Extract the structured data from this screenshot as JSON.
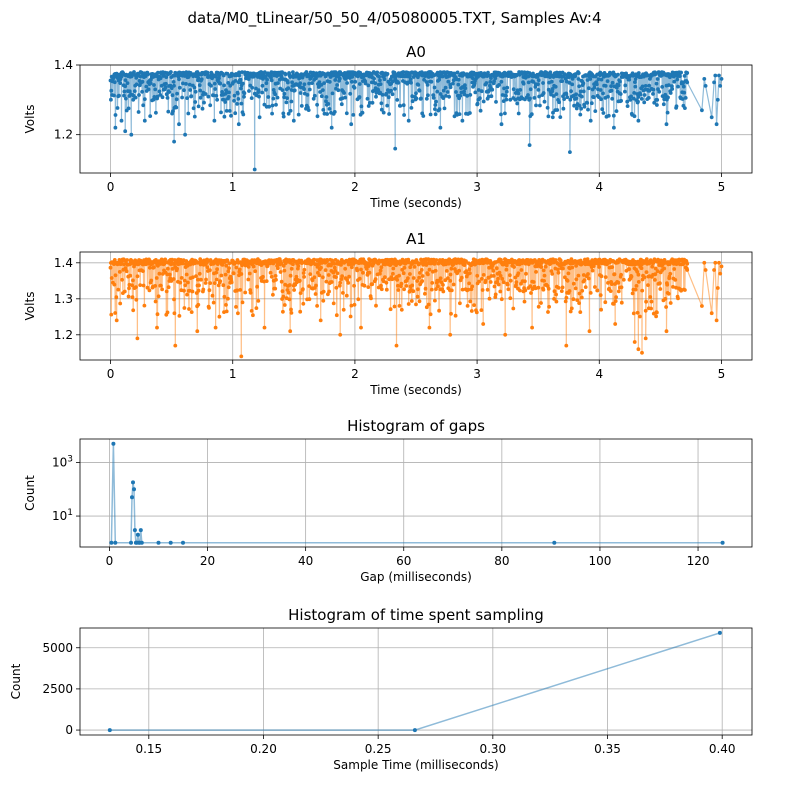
{
  "suptitle": "data/M0_tLinear/50_50_4/05080005.TXT, Samples Av:4",
  "colors": {
    "a0": "#1f77b4",
    "a1": "#ff7f0e",
    "grid": "#b0b0b0"
  },
  "chart_data": [
    {
      "type": "line",
      "title": "A0",
      "xlabel": "Time (seconds)",
      "ylabel": "Volts",
      "xlim": [
        -0.25,
        5.25
      ],
      "ylim": [
        1.09,
        1.4
      ],
      "xticks": [
        0,
        1,
        2,
        3,
        4,
        5
      ],
      "xtick_labels": [
        "0",
        "1",
        "2",
        "3",
        "4",
        "5"
      ],
      "yticks": [
        1.2,
        1.4
      ],
      "ytick_labels": [
        "1.2",
        "1.4"
      ],
      "grid": true,
      "series": [
        {
          "color": "#1f77b4",
          "band": {
            "x_start": 0.0,
            "x_end": 4.72,
            "upper": 1.38,
            "typical_low": 1.3,
            "occasional_low": 1.25
          },
          "dips": [
            [
              0.04,
              1.22
            ],
            [
              0.09,
              1.24
            ],
            [
              0.12,
              1.21
            ],
            [
              0.17,
              1.2
            ],
            [
              0.28,
              1.24
            ],
            [
              0.52,
              1.18
            ],
            [
              0.56,
              1.23
            ],
            [
              0.61,
              1.2
            ],
            [
              0.85,
              1.24
            ],
            [
              1.05,
              1.23
            ],
            [
              1.18,
              1.1
            ],
            [
              1.22,
              1.25
            ],
            [
              1.5,
              1.24
            ],
            [
              1.81,
              1.22
            ],
            [
              1.97,
              1.23
            ],
            [
              2.33,
              1.16
            ],
            [
              2.44,
              1.24
            ],
            [
              2.7,
              1.22
            ],
            [
              2.88,
              1.24
            ],
            [
              3.2,
              1.23
            ],
            [
              3.43,
              1.17
            ],
            [
              3.62,
              1.25
            ],
            [
              3.76,
              1.15
            ],
            [
              3.93,
              1.24
            ],
            [
              4.12,
              1.22
            ],
            [
              4.32,
              1.24
            ],
            [
              4.55,
              1.23
            ]
          ],
          "tail": [
            [
              4.72,
              1.35
            ],
            [
              4.84,
              1.27
            ],
            [
              4.86,
              1.36
            ],
            [
              4.87,
              1.34
            ],
            [
              4.92,
              1.25
            ],
            [
              4.94,
              1.35
            ],
            [
              4.95,
              1.37
            ],
            [
              4.96,
              1.23
            ],
            [
              4.97,
              1.3
            ],
            [
              4.98,
              1.37
            ],
            [
              4.99,
              1.34
            ],
            [
              5.0,
              1.36
            ]
          ]
        }
      ]
    },
    {
      "type": "line",
      "title": "A1",
      "xlabel": "Time (seconds)",
      "ylabel": "Volts",
      "xlim": [
        -0.25,
        5.25
      ],
      "ylim": [
        1.13,
        1.43
      ],
      "xticks": [
        0,
        1,
        2,
        3,
        4,
        5
      ],
      "xtick_labels": [
        "0",
        "1",
        "2",
        "3",
        "4",
        "5"
      ],
      "yticks": [
        1.2,
        1.3,
        1.4
      ],
      "ytick_labels": [
        "1.2",
        "1.3",
        "1.4"
      ],
      "grid": true,
      "series": [
        {
          "color": "#ff7f0e",
          "band": {
            "x_start": 0.0,
            "x_end": 4.72,
            "upper": 1.41,
            "typical_low": 1.32,
            "occasional_low": 1.25
          },
          "dips": [
            [
              0.05,
              1.24
            ],
            [
              0.22,
              1.19
            ],
            [
              0.38,
              1.22
            ],
            [
              0.53,
              1.17
            ],
            [
              0.71,
              1.21
            ],
            [
              0.86,
              1.22
            ],
            [
              1.07,
              1.14
            ],
            [
              1.26,
              1.22
            ],
            [
              1.47,
              1.21
            ],
            [
              1.72,
              1.24
            ],
            [
              1.88,
              1.2
            ],
            [
              2.05,
              1.22
            ],
            [
              2.34,
              1.17
            ],
            [
              2.61,
              1.22
            ],
            [
              2.78,
              1.2
            ],
            [
              3.05,
              1.23
            ],
            [
              3.23,
              1.2
            ],
            [
              3.45,
              1.22
            ],
            [
              3.73,
              1.17
            ],
            [
              3.92,
              1.21
            ],
            [
              4.13,
              1.23
            ],
            [
              4.29,
              1.18
            ],
            [
              4.32,
              1.16
            ],
            [
              4.35,
              1.15
            ],
            [
              4.38,
              1.19
            ],
            [
              4.55,
              1.21
            ]
          ],
          "tail": [
            [
              4.72,
              1.38
            ],
            [
              4.84,
              1.28
            ],
            [
              4.86,
              1.4
            ],
            [
              4.87,
              1.38
            ],
            [
              4.92,
              1.26
            ],
            [
              4.94,
              1.38
            ],
            [
              4.95,
              1.4
            ],
            [
              4.96,
              1.24
            ],
            [
              4.97,
              1.33
            ],
            [
              4.98,
              1.4
            ],
            [
              4.99,
              1.37
            ],
            [
              5.0,
              1.39
            ]
          ]
        }
      ]
    },
    {
      "type": "line",
      "title": "Histogram of gaps",
      "xlabel": "Gap (milliseconds)",
      "ylabel": "Count",
      "log_y": true,
      "xlim": [
        -6,
        131
      ],
      "ylim": [
        0.7,
        7500
      ],
      "xticks": [
        0,
        20,
        40,
        60,
        80,
        100,
        120
      ],
      "xtick_labels": [
        "0",
        "20",
        "40",
        "60",
        "80",
        "100",
        "120"
      ],
      "yticks": [
        10,
        1000
      ],
      "ytick_labels": [
        "10^1",
        "10^3"
      ],
      "grid": true,
      "series": [
        {
          "color": "#1f77b4",
          "points": [
            [
              0.4,
              1
            ],
            [
              0.8,
              5000
            ],
            [
              1.2,
              1
            ],
            [
              4.4,
              1
            ],
            [
              4.6,
              50
            ],
            [
              4.8,
              180
            ],
            [
              5.0,
              100
            ],
            [
              5.2,
              3
            ],
            [
              5.4,
              1
            ],
            [
              5.6,
              1
            ],
            [
              5.8,
              2
            ],
            [
              6.0,
              1
            ],
            [
              6.2,
              1
            ],
            [
              6.4,
              3
            ],
            [
              6.6,
              1
            ],
            [
              10,
              1
            ],
            [
              12.5,
              1
            ],
            [
              15,
              1
            ],
            [
              90.7,
              1
            ],
            [
              125,
              1
            ]
          ]
        }
      ]
    },
    {
      "type": "line",
      "title": "Histogram of time spent sampling",
      "xlabel": "Sample Time (milliseconds)",
      "ylabel": "Count",
      "xlim": [
        0.12,
        0.413
      ],
      "ylim": [
        -300,
        6200
      ],
      "xticks": [
        0.15,
        0.2,
        0.25,
        0.3,
        0.35,
        0.4
      ],
      "xtick_labels": [
        "0.15",
        "0.20",
        "0.25",
        "0.30",
        "0.35",
        "0.40"
      ],
      "yticks": [
        0,
        2500,
        5000
      ],
      "ytick_labels": [
        "0",
        "2500",
        "5000"
      ],
      "grid": true,
      "series": [
        {
          "color": "#1f77b4",
          "points": [
            [
              0.133,
              0
            ],
            [
              0.266,
              0
            ],
            [
              0.399,
              5900
            ]
          ]
        }
      ]
    }
  ]
}
